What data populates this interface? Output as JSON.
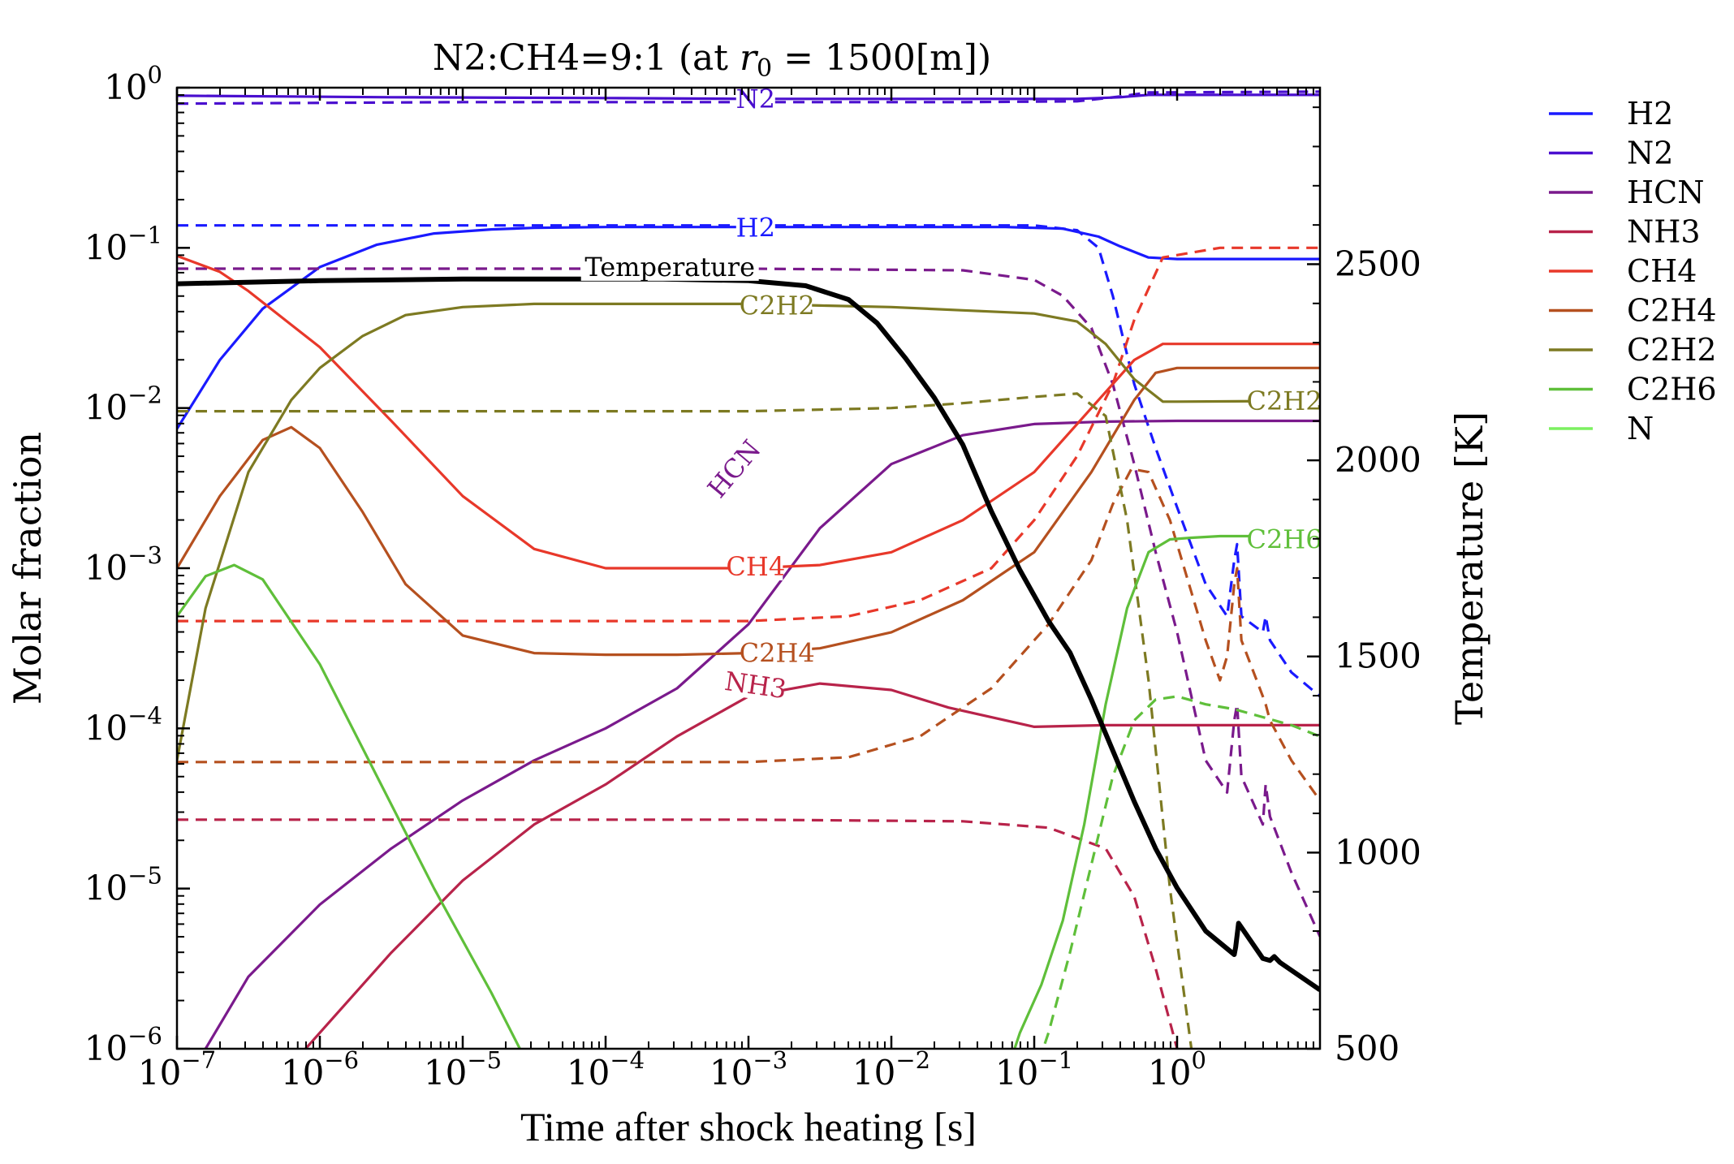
{
  "chart_data": {
    "type": "line",
    "title_main": "N2:CH4=9:1 (at ",
    "title_var": "r",
    "title_sub": "0",
    "title_eq": " = 1500[m])",
    "xlabel": "Time after shock heating [s]",
    "ylabel_left": "Molar fraction",
    "ylabel_right": "Temperature [K]",
    "xscale": "log",
    "yscale_left": "log",
    "xlim": [
      1e-07,
      10
    ],
    "ylim_left": [
      1e-06,
      1
    ],
    "ylim_right": [
      500,
      2950
    ],
    "x_ticks": [
      {
        "base": "10",
        "exp": "−7",
        "value": -7
      },
      {
        "base": "10",
        "exp": "−6",
        "value": -6
      },
      {
        "base": "10",
        "exp": "−5",
        "value": -5
      },
      {
        "base": "10",
        "exp": "−4",
        "value": -4
      },
      {
        "base": "10",
        "exp": "−3",
        "value": -3
      },
      {
        "base": "10",
        "exp": "−2",
        "value": -2
      },
      {
        "base": "10",
        "exp": "−1",
        "value": -1
      },
      {
        "base": "10",
        "exp": "0",
        "value": 0
      }
    ],
    "y_ticks_left": [
      {
        "base": "10",
        "exp": "0",
        "value": 0
      },
      {
        "base": "10",
        "exp": "−1",
        "value": -1
      },
      {
        "base": "10",
        "exp": "−2",
        "value": -2
      },
      {
        "base": "10",
        "exp": "−3",
        "value": -3
      },
      {
        "base": "10",
        "exp": "−4",
        "value": -4
      },
      {
        "base": "10",
        "exp": "−5",
        "value": -5
      },
      {
        "base": "10",
        "exp": "−6",
        "value": -6
      }
    ],
    "y_ticks_right": [
      {
        "label": "2500",
        "value": 2500
      },
      {
        "label": "2000",
        "value": 2000
      },
      {
        "label": "1500",
        "value": 1500
      },
      {
        "label": "1000",
        "value": 1000
      },
      {
        "label": "500",
        "value": 500
      }
    ],
    "legend": [
      {
        "name": "H2",
        "color": "#1a1aff"
      },
      {
        "name": "N2",
        "color": "#4a0fcf"
      },
      {
        "name": "HCN",
        "color": "#7a1a8c"
      },
      {
        "name": "NH3",
        "color": "#b8234a"
      },
      {
        "name": "CH4",
        "color": "#e8382a"
      },
      {
        "name": "C2H4",
        "color": "#b5501f"
      },
      {
        "name": "C2H2",
        "color": "#7d7a22"
      },
      {
        "name": "C2H6",
        "color": "#5fbf3a"
      },
      {
        "name": "N",
        "color": "#7cf060"
      }
    ],
    "temperature_color": "#000000",
    "inline_labels": [
      {
        "text": "N2",
        "series": "N2",
        "x": -2.95,
        "y": -0.07,
        "angle": 0
      },
      {
        "text": "H2",
        "series": "H2",
        "x": -2.95,
        "y": -0.875,
        "angle": 0
      },
      {
        "text": "Temperature",
        "series": "T",
        "x": -3.55,
        "yT": 2493,
        "angle": 0
      },
      {
        "text": "C2H2",
        "series": "C2H2",
        "x": -2.8,
        "y": -1.36,
        "angle": 0
      },
      {
        "text": "C2H2",
        "series": "C2H2",
        "x": 0.75,
        "y": -1.955,
        "angle": 0
      },
      {
        "text": "C2H6",
        "series": "C2H6",
        "x": 0.75,
        "y": -2.82,
        "angle": 0
      },
      {
        "text": "CH4",
        "series": "CH4",
        "x": -2.95,
        "y": -2.99,
        "angle": 0
      },
      {
        "text": "HCN",
        "series": "HCN",
        "x": -3.1,
        "y": -2.38,
        "angle": -50
      },
      {
        "text": "C2H4",
        "series": "C2H4",
        "x": -2.8,
        "y": -3.53,
        "angle": 0
      },
      {
        "text": "NH3",
        "series": "NH3",
        "x": -2.95,
        "y": -3.73,
        "angle": 8
      }
    ],
    "series": [
      {
        "name": "H2",
        "style": "solid",
        "x": [
          -7,
          -6.7,
          -6.4,
          -6.0,
          -5.6,
          -5.2,
          -4.8,
          -4.5,
          -4,
          -3,
          -2,
          -1.2,
          -0.8,
          -0.55,
          -0.4,
          -0.2,
          0,
          0.5,
          1
        ],
        "y": [
          -2.13,
          -1.7,
          -1.38,
          -1.12,
          -0.98,
          -0.91,
          -0.885,
          -0.875,
          -0.87,
          -0.87,
          -0.87,
          -0.87,
          -0.88,
          -0.93,
          -0.99,
          -1.06,
          -1.07,
          -1.07,
          -1.07
        ]
      },
      {
        "name": "H2",
        "style": "dashed",
        "x": [
          -7,
          -3,
          -1.0,
          -0.7,
          -0.55,
          -0.45,
          -0.3,
          -0.15,
          0,
          0.2,
          0.35,
          0.4,
          0.42,
          0.45,
          0.6,
          0.62,
          0.65,
          0.8,
          1
        ],
        "y": [
          -0.86,
          -0.86,
          -0.86,
          -0.89,
          -1.0,
          -1.3,
          -1.85,
          -2.25,
          -2.62,
          -3.1,
          -3.3,
          -2.95,
          -2.85,
          -3.3,
          -3.4,
          -3.3,
          -3.45,
          -3.65,
          -3.8
        ]
      },
      {
        "name": "N2",
        "style": "solid",
        "x": [
          -7,
          -5.5,
          -4,
          -3,
          -1.5,
          -0.7,
          -0.4,
          -0.2,
          1
        ],
        "y": [
          -0.05,
          -0.06,
          -0.065,
          -0.07,
          -0.07,
          -0.07,
          -0.06,
          -0.045,
          -0.045
        ]
      },
      {
        "name": "N2",
        "style": "dashed",
        "x": [
          -7,
          -5,
          -3,
          -1.5,
          -0.7,
          -0.4,
          -0.2,
          1
        ],
        "y": [
          -0.1,
          -0.09,
          -0.09,
          -0.09,
          -0.085,
          -0.055,
          -0.03,
          -0.025
        ]
      },
      {
        "name": "HCN",
        "style": "solid",
        "x": [
          -6.8,
          -6.5,
          -6.0,
          -5.5,
          -5.0,
          -4.5,
          -4.0,
          -3.5,
          -3.0,
          -2.5,
          -2.0,
          -1.5,
          -1.0,
          -0.5,
          0,
          1
        ],
        "y": [
          -6.0,
          -5.55,
          -5.1,
          -4.75,
          -4.45,
          -4.2,
          -4.0,
          -3.75,
          -3.35,
          -2.75,
          -2.35,
          -2.17,
          -2.1,
          -2.085,
          -2.08,
          -2.08
        ]
      },
      {
        "name": "HCN",
        "style": "dashed",
        "x": [
          -7,
          -3,
          -1.5,
          -1.0,
          -0.8,
          -0.6,
          -0.45,
          -0.3,
          -0.15,
          0,
          0.2,
          0.35,
          0.4,
          0.42,
          0.45,
          0.6,
          0.62,
          0.65,
          0.8,
          1
        ],
        "y": [
          -1.13,
          -1.13,
          -1.14,
          -1.2,
          -1.3,
          -1.5,
          -1.85,
          -2.35,
          -2.9,
          -3.4,
          -4.2,
          -4.4,
          -3.95,
          -3.85,
          -4.3,
          -4.6,
          -4.35,
          -4.55,
          -4.9,
          -5.3
        ]
      },
      {
        "name": "NH3",
        "style": "solid",
        "x": [
          -6.1,
          -5.5,
          -5.0,
          -4.5,
          -4.0,
          -3.5,
          -3.0,
          -2.5,
          -2.0,
          -1.6,
          -1.0,
          -0.5,
          0,
          1
        ],
        "y": [
          -6.0,
          -5.4,
          -4.95,
          -4.6,
          -4.35,
          -4.05,
          -3.8,
          -3.72,
          -3.76,
          -3.87,
          -3.99,
          -3.98,
          -3.98,
          -3.98
        ]
      },
      {
        "name": "NH3",
        "style": "dashed",
        "x": [
          -7,
          -3,
          -1.5,
          -0.9,
          -0.5,
          -0.3,
          -0.15,
          0,
          0.1
        ],
        "y": [
          -4.57,
          -4.57,
          -4.58,
          -4.62,
          -4.75,
          -5.05,
          -5.5,
          -6.0,
          -6.3
        ]
      },
      {
        "name": "CH4",
        "style": "solid",
        "x": [
          -7,
          -6.7,
          -6.5,
          -6.2,
          -6.0,
          -5.5,
          -5.0,
          -4.5,
          -4.0,
          -3.5,
          -3.0,
          -2.5,
          -2.0,
          -1.5,
          -1.0,
          -0.6,
          -0.3,
          -0.1,
          1
        ],
        "y": [
          -1.05,
          -1.15,
          -1.27,
          -1.48,
          -1.62,
          -2.08,
          -2.55,
          -2.88,
          -3.0,
          -3.0,
          -3.0,
          -2.98,
          -2.9,
          -2.7,
          -2.4,
          -2.0,
          -1.7,
          -1.6,
          -1.6
        ]
      },
      {
        "name": "CH4",
        "style": "dashed",
        "x": [
          -7,
          -3,
          -2.3,
          -1.8,
          -1.3,
          -1.0,
          -0.7,
          -0.45,
          -0.3,
          -0.1,
          0.3,
          1
        ],
        "y": [
          -3.33,
          -3.33,
          -3.3,
          -3.2,
          -3.0,
          -2.7,
          -2.3,
          -1.85,
          -1.45,
          -1.06,
          -1.0,
          -1.0
        ]
      },
      {
        "name": "C2H4",
        "style": "solid",
        "x": [
          -7,
          -6.7,
          -6.4,
          -6.2,
          -6.0,
          -5.7,
          -5.4,
          -5.0,
          -4.5,
          -4.0,
          -3.5,
          -3.0,
          -2.5,
          -2.0,
          -1.5,
          -1.0,
          -0.6,
          -0.3,
          -0.15,
          0,
          1
        ],
        "y": [
          -3.0,
          -2.55,
          -2.2,
          -2.12,
          -2.25,
          -2.65,
          -3.1,
          -3.42,
          -3.53,
          -3.54,
          -3.54,
          -3.53,
          -3.5,
          -3.4,
          -3.2,
          -2.9,
          -2.4,
          -1.95,
          -1.78,
          -1.75,
          -1.75
        ]
      },
      {
        "name": "C2H4",
        "style": "dashed",
        "x": [
          -7,
          -3,
          -2.3,
          -1.8,
          -1.3,
          -0.9,
          -0.6,
          -0.45,
          -0.32,
          -0.2,
          -0.05,
          0.1,
          0.2,
          0.3,
          0.35,
          0.4,
          0.42,
          0.45,
          0.6,
          0.62,
          0.65,
          0.8,
          1
        ],
        "y": [
          -4.21,
          -4.21,
          -4.18,
          -4.05,
          -3.75,
          -3.35,
          -2.95,
          -2.6,
          -2.38,
          -2.4,
          -2.7,
          -3.15,
          -3.45,
          -3.7,
          -3.55,
          -3.1,
          -3.0,
          -3.45,
          -3.8,
          -3.85,
          -3.95,
          -4.2,
          -4.45
        ]
      },
      {
        "name": "C2H2",
        "style": "solid",
        "x": [
          -7,
          -6.8,
          -6.5,
          -6.2,
          -6.0,
          -5.7,
          -5.4,
          -5.0,
          -4.5,
          -4.0,
          -3.5,
          -3.0,
          -2.5,
          -2.0,
          -1.5,
          -1.0,
          -0.7,
          -0.5,
          -0.3,
          -0.1,
          0,
          1
        ],
        "y": [
          -4.2,
          -3.25,
          -2.4,
          -1.95,
          -1.75,
          -1.55,
          -1.42,
          -1.37,
          -1.35,
          -1.35,
          -1.35,
          -1.35,
          -1.36,
          -1.37,
          -1.39,
          -1.41,
          -1.46,
          -1.6,
          -1.82,
          -1.96,
          -1.96,
          -1.955
        ]
      },
      {
        "name": "C2H2",
        "style": "dashed",
        "x": [
          -7,
          -4,
          -3,
          -2,
          -1.5,
          -1.0,
          -0.7,
          -0.5,
          -0.35,
          -0.2,
          -0.05,
          0.1,
          0.13
        ],
        "y": [
          -2.02,
          -2.02,
          -2.02,
          -2.0,
          -1.97,
          -1.93,
          -1.91,
          -2.05,
          -2.7,
          -3.7,
          -5.0,
          -6.0,
          -6.3
        ]
      },
      {
        "name": "C2H6",
        "style": "solid",
        "x": [
          -7,
          -6.8,
          -6.6,
          -6.4,
          -6.0,
          -5.6,
          -5.2,
          -4.8,
          -4.6,
          -4.5
        ],
        "y": [
          -3.3,
          -3.05,
          -2.98,
          -3.07,
          -3.6,
          -4.3,
          -5.0,
          -5.65,
          -6.0,
          -6.3
        ]
      },
      {
        "name": "C2H6",
        "style": "solid",
        "x": [
          -1.25,
          -1.1,
          -0.95,
          -0.8,
          -0.65,
          -0.5,
          -0.35,
          -0.2,
          -0.05,
          0.1,
          0.3,
          1
        ],
        "y": [
          -6.3,
          -5.9,
          -5.6,
          -5.2,
          -4.6,
          -3.85,
          -3.25,
          -2.9,
          -2.82,
          -2.81,
          -2.8,
          -2.8
        ]
      },
      {
        "name": "C2H6",
        "style": "dashed",
        "x": [
          -1.05,
          -0.9,
          -0.75,
          -0.6,
          -0.45,
          -0.3,
          -0.15,
          0,
          0.2,
          0.4,
          0.6,
          0.8,
          1
        ],
        "y": [
          -6.3,
          -5.9,
          -5.4,
          -4.85,
          -4.3,
          -3.95,
          -3.82,
          -3.8,
          -3.85,
          -3.88,
          -3.93,
          -3.98,
          -4.05
        ]
      }
    ],
    "temperature": {
      "x": [
        -7,
        -6,
        -5,
        -4,
        -3.6,
        -3.0,
        -2.6,
        -2.3,
        -2.1,
        -1.9,
        -1.7,
        -1.5,
        -1.3,
        -1.1,
        -0.9,
        -0.75,
        -0.6,
        -0.45,
        -0.3,
        -0.15,
        0,
        0.2,
        0.4,
        0.41,
        0.43,
        0.6,
        0.65,
        0.68,
        0.72,
        1
      ],
      "T": [
        2450,
        2458,
        2462,
        2462,
        2462,
        2458,
        2445,
        2410,
        2350,
        2260,
        2160,
        2040,
        1870,
        1720,
        1590,
        1510,
        1390,
        1260,
        1130,
        1010,
        910,
        800,
        740,
        760,
        820,
        730,
        725,
        735,
        720,
        650
      ]
    }
  }
}
